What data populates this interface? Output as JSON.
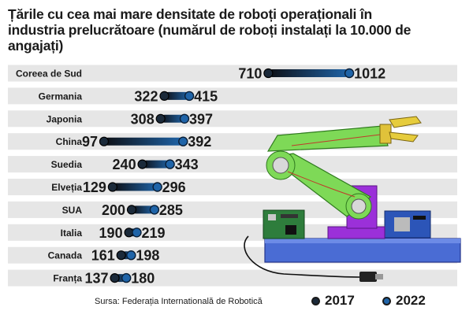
{
  "title_line1": "Țările cu cea mai mare densitate de roboți operaționali în",
  "title_line2": "industria prelucrătoare (numărul de roboți instalați la 10.000 de angajați)",
  "source": "Sursa: Federația Internatională de Robotică",
  "colors": {
    "dot_2017": "#1b2a3a",
    "dot_2022": "#1f64a8",
    "band": "#e6e6e6",
    "robot_arm": "#7ed957",
    "robot_base": "#4a6cd4",
    "robot_pedestal": "#9b30d9"
  },
  "chart_data": {
    "type": "dumbbell",
    "title": "Țările cu cea mai mare densitate de roboți operaționali în industria prelucrătoare (numărul de roboți instalați la 10.000 de angajați)",
    "categories": [
      "Coreea de Sud",
      "Germania",
      "Japonia",
      "China",
      "Suedia",
      "Elveția",
      "SUA",
      "Italia",
      "Canada",
      "Franța"
    ],
    "series": [
      {
        "name": "2017",
        "values": [
          710,
          322,
          308,
          97,
          240,
          129,
          200,
          190,
          161,
          137
        ]
      },
      {
        "name": "2022",
        "values": [
          1012,
          415,
          397,
          392,
          343,
          296,
          285,
          219,
          198,
          180
        ]
      }
    ],
    "legend": [
      "2017",
      "2022"
    ],
    "legend_position": "bottom-right",
    "grid": false
  }
}
